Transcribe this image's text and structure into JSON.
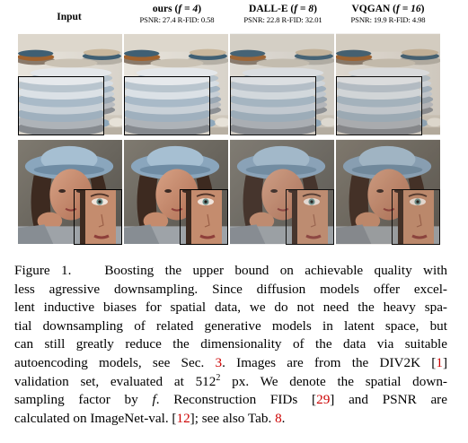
{
  "columns": [
    {
      "title": "Input",
      "subtitle": ""
    },
    {
      "title": "ours (",
      "factor": "f = 4",
      "close": ")",
      "subtitle": "PSNR: 27.4 R-FID: 0.58"
    },
    {
      "title": "DALL-E (",
      "factor": "f = 8",
      "close": ")",
      "subtitle": "PSNR: 22.8 R-FID: 32.01"
    },
    {
      "title": "VQGAN (",
      "factor": "f = 16",
      "close": ")",
      "subtitle": "PSNR: 19.9 R-FID: 4.98"
    }
  ],
  "caption": {
    "figure_label": "Figure 1.",
    "lines": [
      "Boosting the upper bound on achievable quality with",
      "less agressive downsampling. Since diffusion models offer excel-",
      "lent inductive biases for spatial data, we do not need the heavy spa-",
      "tial downsampling of related generative models in latent space, but",
      "can still greatly reduce the dimensionality of the data via suitable"
    ],
    "line6_a": "autoencoding models, see Sec. ",
    "ref_sec": "3",
    "line6_b": ". Images are from the DIV2K [",
    "ref_div2k": "1",
    "line6_c": "]",
    "line7_a": "validation set, evaluated at 512",
    "line7_sup": "2",
    "line7_b": " px. We denote the spatial down-",
    "line8_a": "sampling factor by ",
    "line8_f": "f",
    "line8_b": ". Reconstruction FIDs [",
    "ref_fid": "29",
    "line8_c": "] and PSNR are",
    "line9_a": "calculated on ImageNet-val. [",
    "ref_imagenet": "12",
    "line9_b": "]; see also Tab. ",
    "ref_tab": "8",
    "line9_c": "."
  }
}
